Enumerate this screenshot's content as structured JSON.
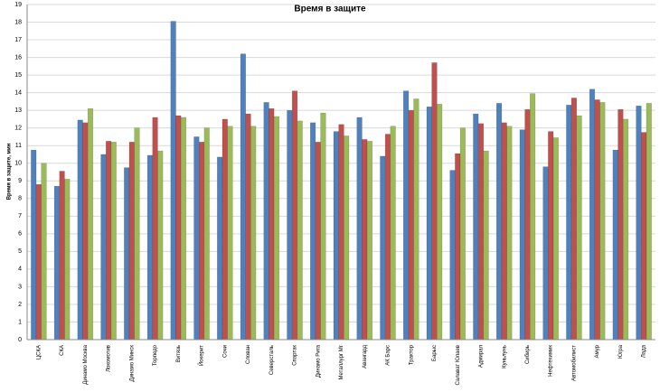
{
  "chart_data": {
    "type": "bar",
    "title": "Время в защите",
    "y_label": "Время в защите, мин",
    "categories": [
      "ЦСКА",
      "СКА",
      "Динамо Москва",
      "Локомотив",
      "Динамо Минск",
      "Торпедо",
      "Витязь",
      "Йокерит",
      "Сочи",
      "Слован",
      "Северсталь",
      "Спартак",
      "Динамо Рига",
      "Металлург Мг",
      "Авангард",
      "АК Барс",
      "Трактор",
      "Барыс",
      "Салават Юлаев",
      "Адмирал",
      "Куньлунь",
      "Сибирь",
      "Нефтехимик",
      "Автомобилист",
      "Амур",
      "Югра",
      "Лада"
    ],
    "series": [
      {
        "color": "#4f81bd",
        "values": [
          10.75,
          8.7,
          12.45,
          10.5,
          9.75,
          10.45,
          18.05,
          11.5,
          10.35,
          16.2,
          13.45,
          13.0,
          12.3,
          11.8,
          12.6,
          10.4,
          14.1,
          13.2,
          9.6,
          12.8,
          13.4,
          11.9,
          9.8,
          13.3,
          14.2,
          10.75,
          13.25
        ]
      },
      {
        "color": "#c0504d",
        "values": [
          8.8,
          9.55,
          12.3,
          11.25,
          11.2,
          12.6,
          12.7,
          11.2,
          12.5,
          12.8,
          13.1,
          14.1,
          11.2,
          12.2,
          11.35,
          11.65,
          13.0,
          15.7,
          10.55,
          12.25,
          12.3,
          13.05,
          11.8,
          13.7,
          13.6,
          13.05,
          11.75
        ]
      },
      {
        "color": "#9bbb59",
        "values": [
          10.0,
          9.1,
          13.1,
          11.2,
          12.0,
          10.7,
          12.6,
          12.0,
          12.1,
          12.1,
          12.65,
          12.4,
          12.85,
          11.55,
          11.25,
          12.1,
          13.65,
          13.35,
          12.0,
          10.7,
          12.1,
          13.95,
          11.45,
          12.7,
          13.45,
          12.5,
          13.4
        ]
      }
    ],
    "ylim": [
      0,
      19
    ],
    "yticks": [
      0,
      1,
      2,
      3,
      4,
      5,
      6,
      7,
      8,
      9,
      10,
      11,
      12,
      13,
      14,
      15,
      16,
      17,
      18,
      19
    ],
    "grid": true
  }
}
